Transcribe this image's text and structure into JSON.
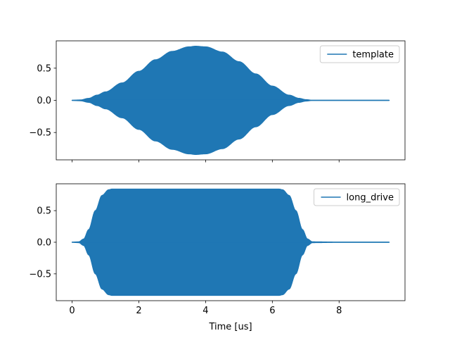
{
  "chart_data": [
    {
      "type": "area",
      "description": "Oscillating signal envelope (Hann-like window), filled band",
      "series": [
        {
          "name": "template",
          "color": "#1f77b4",
          "envelope": {
            "x": [
              0,
              0.25,
              0.5,
              0.75,
              1.0,
              1.5,
              2.0,
              2.5,
              3.0,
              3.5,
              3.7,
              4.0,
              4.5,
              5.0,
              5.5,
              6.0,
              6.5,
              6.8,
              7.0,
              7.2,
              8.0,
              9.0,
              9.5
            ],
            "y": [
              0,
              0.005,
              0.03,
              0.08,
              0.13,
              0.27,
              0.45,
              0.63,
              0.76,
              0.83,
              0.84,
              0.83,
              0.75,
              0.6,
              0.41,
              0.22,
              0.08,
              0.03,
              0.01,
              0,
              0,
              0,
              0
            ]
          }
        }
      ],
      "xlim": [
        -0.475,
        9.975
      ],
      "ylim": [
        -0.925,
        0.925
      ],
      "xticks": [
        0,
        2,
        4,
        6,
        8
      ],
      "yticks": [
        0.5,
        0.0,
        -0.5
      ],
      "ytick_labels": [
        "0.5",
        "0.0",
        "−0.5"
      ],
      "xtick_labels_visible": false,
      "legend": "upper right"
    },
    {
      "type": "area",
      "description": "Oscillating signal envelope with flat-top plateau, filled band",
      "series": [
        {
          "name": "long_drive",
          "color": "#1f77b4",
          "envelope": {
            "x": [
              0,
              0.2,
              0.35,
              0.5,
              0.7,
              0.9,
              1.1,
              1.2,
              6.2,
              6.3,
              6.5,
              6.7,
              6.9,
              7.05,
              7.2,
              8.0,
              9.5
            ],
            "y": [
              0,
              0.005,
              0.05,
              0.2,
              0.5,
              0.74,
              0.83,
              0.84,
              0.84,
              0.83,
              0.74,
              0.5,
              0.2,
              0.05,
              0.005,
              0,
              0
            ]
          }
        }
      ],
      "xlim": [
        -0.475,
        9.975
      ],
      "ylim": [
        -0.925,
        0.925
      ],
      "xticks": [
        0,
        2,
        4,
        6,
        8
      ],
      "xtick_labels": [
        "0",
        "2",
        "4",
        "6",
        "8"
      ],
      "yticks": [
        0.5,
        0.0,
        -0.5
      ],
      "ytick_labels": [
        "0.5",
        "0.0",
        "−0.5"
      ],
      "xlabel": "Time [us]",
      "legend": "upper right"
    }
  ]
}
